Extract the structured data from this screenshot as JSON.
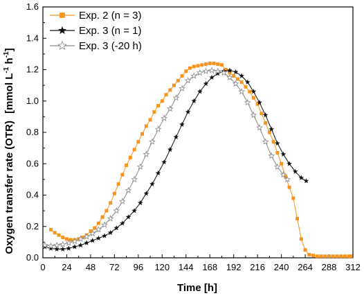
{
  "chart_data": {
    "type": "line",
    "title": "",
    "xlabel": "Time   [h]",
    "ylabel": "Oxygen transfer rate (OTR)",
    "yunit": "[mmol L-1 h-1]",
    "xlim": [
      0,
      312
    ],
    "ylim": [
      0,
      1.6
    ],
    "xticks": [
      0,
      24,
      48,
      72,
      96,
      120,
      144,
      168,
      192,
      216,
      240,
      264,
      288,
      312
    ],
    "yticks": [
      0.0,
      0.2,
      0.4,
      0.6,
      0.8,
      1.0,
      1.2,
      1.4,
      1.6
    ],
    "ytick_labels": [
      "0.0",
      "0.2",
      "0.4",
      "0.6",
      "0.8",
      "1.0",
      "1.2",
      "1.4",
      "1.6"
    ],
    "grid": false,
    "legend_position": "top-left",
    "series": [
      {
        "name": "Exp. 2 (n = 3)",
        "color": "#f7941d",
        "marker": "square",
        "points": [
          [
            8,
            0.18
          ],
          [
            12,
            0.16
          ],
          [
            16,
            0.145
          ],
          [
            20,
            0.13
          ],
          [
            24,
            0.12
          ],
          [
            28,
            0.115
          ],
          [
            32,
            0.115
          ],
          [
            36,
            0.12
          ],
          [
            40,
            0.13
          ],
          [
            44,
            0.145
          ],
          [
            48,
            0.17
          ],
          [
            52,
            0.19
          ],
          [
            56,
            0.22
          ],
          [
            60,
            0.26
          ],
          [
            64,
            0.3
          ],
          [
            68,
            0.35
          ],
          [
            72,
            0.41
          ],
          [
            76,
            0.47
          ],
          [
            80,
            0.53
          ],
          [
            84,
            0.59
          ],
          [
            88,
            0.64
          ],
          [
            92,
            0.69
          ],
          [
            96,
            0.74
          ],
          [
            100,
            0.79
          ],
          [
            104,
            0.84
          ],
          [
            108,
            0.88
          ],
          [
            112,
            0.93
          ],
          [
            116,
            0.97
          ],
          [
            120,
            1.0
          ],
          [
            124,
            1.04
          ],
          [
            128,
            1.07
          ],
          [
            132,
            1.1
          ],
          [
            136,
            1.13
          ],
          [
            140,
            1.16
          ],
          [
            144,
            1.19
          ],
          [
            148,
            1.21
          ],
          [
            152,
            1.22
          ],
          [
            156,
            1.225
          ],
          [
            160,
            1.23
          ],
          [
            164,
            1.235
          ],
          [
            168,
            1.24
          ],
          [
            172,
            1.24
          ],
          [
            176,
            1.235
          ],
          [
            180,
            1.23
          ],
          [
            184,
            1.2
          ],
          [
            188,
            1.18
          ],
          [
            192,
            1.16
          ],
          [
            196,
            1.14
          ],
          [
            200,
            1.12
          ],
          [
            204,
            1.09
          ],
          [
            208,
            1.06
          ],
          [
            212,
            1.02
          ],
          [
            216,
            0.98
          ],
          [
            220,
            0.92
          ],
          [
            224,
            0.86
          ],
          [
            228,
            0.8
          ],
          [
            232,
            0.74
          ],
          [
            236,
            0.67
          ],
          [
            240,
            0.6
          ],
          [
            244,
            0.52
          ],
          [
            248,
            0.45
          ],
          [
            252,
            0.38
          ],
          [
            256,
            0.25
          ],
          [
            260,
            0.12
          ],
          [
            264,
            0.05
          ],
          [
            268,
            0.02
          ],
          [
            272,
            0.015
          ],
          [
            276,
            0.01
          ],
          [
            280,
            0.01
          ],
          [
            284,
            0.01
          ],
          [
            288,
            0.01
          ],
          [
            292,
            0.01
          ],
          [
            296,
            0.01
          ],
          [
            300,
            0.01
          ],
          [
            304,
            0.01
          ],
          [
            308,
            0.01
          ],
          [
            310,
            0.01
          ]
        ]
      },
      {
        "name": "Exp. 3 (n = 1)",
        "color": "#111111",
        "marker": "star-filled",
        "points": [
          [
            2,
            0.07
          ],
          [
            8,
            0.06
          ],
          [
            14,
            0.055
          ],
          [
            20,
            0.055
          ],
          [
            26,
            0.06
          ],
          [
            32,
            0.07
          ],
          [
            38,
            0.08
          ],
          [
            44,
            0.095
          ],
          [
            50,
            0.11
          ],
          [
            56,
            0.125
          ],
          [
            62,
            0.14
          ],
          [
            68,
            0.16
          ],
          [
            74,
            0.19
          ],
          [
            80,
            0.22
          ],
          [
            86,
            0.26
          ],
          [
            92,
            0.3
          ],
          [
            98,
            0.35
          ],
          [
            104,
            0.41
          ],
          [
            110,
            0.47
          ],
          [
            116,
            0.54
          ],
          [
            122,
            0.61
          ],
          [
            128,
            0.69
          ],
          [
            134,
            0.77
          ],
          [
            140,
            0.85
          ],
          [
            146,
            0.93
          ],
          [
            152,
            1.0
          ],
          [
            158,
            1.06
          ],
          [
            164,
            1.11
          ],
          [
            170,
            1.15
          ],
          [
            176,
            1.175
          ],
          [
            182,
            1.19
          ],
          [
            188,
            1.195
          ],
          [
            194,
            1.185
          ],
          [
            200,
            1.16
          ],
          [
            206,
            1.12
          ],
          [
            212,
            1.06
          ],
          [
            218,
            0.99
          ],
          [
            224,
            0.91
          ],
          [
            230,
            0.82
          ],
          [
            236,
            0.73
          ],
          [
            242,
            0.66
          ],
          [
            248,
            0.6
          ],
          [
            254,
            0.55
          ],
          [
            260,
            0.51
          ],
          [
            265,
            0.49
          ]
        ]
      },
      {
        "name": "Exp. 3 (-20 h)",
        "color": "#888888",
        "marker": "star-open",
        "points": [
          [
            2,
            0.08
          ],
          [
            8,
            0.075
          ],
          [
            14,
            0.08
          ],
          [
            20,
            0.085
          ],
          [
            26,
            0.095
          ],
          [
            32,
            0.105
          ],
          [
            38,
            0.12
          ],
          [
            44,
            0.135
          ],
          [
            50,
            0.155
          ],
          [
            56,
            0.18
          ],
          [
            62,
            0.21
          ],
          [
            68,
            0.25
          ],
          [
            74,
            0.3
          ],
          [
            80,
            0.36
          ],
          [
            86,
            0.43
          ],
          [
            92,
            0.5
          ],
          [
            98,
            0.58
          ],
          [
            104,
            0.66
          ],
          [
            110,
            0.74
          ],
          [
            116,
            0.82
          ],
          [
            122,
            0.89
          ],
          [
            128,
            0.95
          ],
          [
            134,
            1.02
          ],
          [
            140,
            1.08
          ],
          [
            146,
            1.13
          ],
          [
            152,
            1.16
          ],
          [
            158,
            1.18
          ],
          [
            164,
            1.19
          ],
          [
            170,
            1.195
          ],
          [
            176,
            1.19
          ],
          [
            182,
            1.18
          ],
          [
            188,
            1.15
          ],
          [
            194,
            1.11
          ],
          [
            200,
            1.06
          ],
          [
            206,
            0.99
          ],
          [
            212,
            0.91
          ],
          [
            218,
            0.83
          ],
          [
            224,
            0.74
          ],
          [
            230,
            0.65
          ],
          [
            236,
            0.58
          ],
          [
            242,
            0.53
          ],
          [
            246,
            0.5
          ]
        ]
      }
    ]
  }
}
